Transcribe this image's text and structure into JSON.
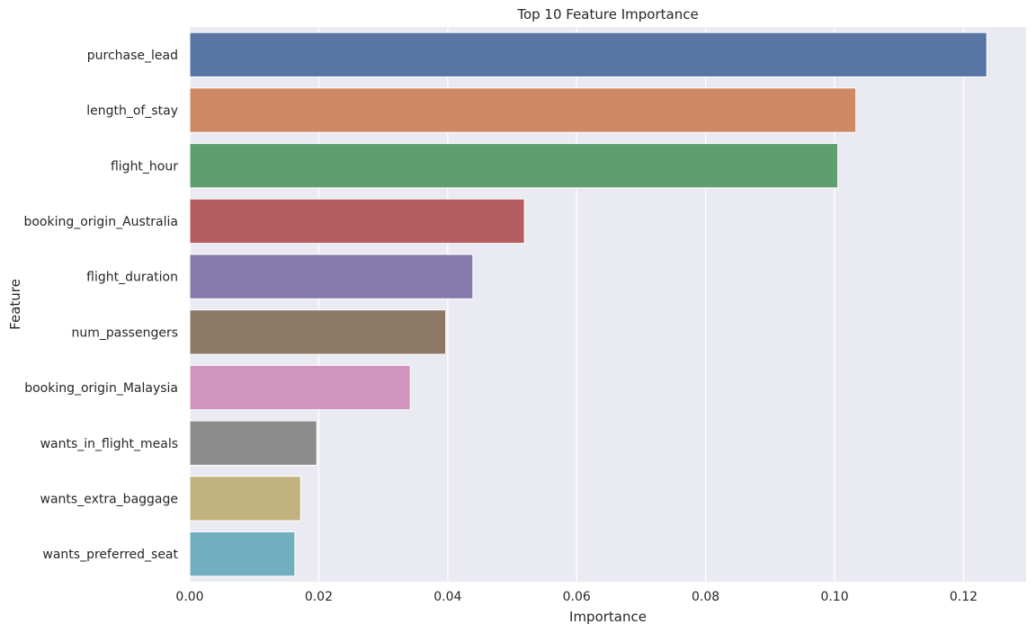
{
  "chart_data": {
    "type": "bar",
    "orientation": "horizontal",
    "title": "Top 10 Feature Importance",
    "xlabel": "Importance",
    "ylabel": "Feature",
    "xlim": [
      0,
      0.1297
    ],
    "xticks": [
      "0.00",
      "0.02",
      "0.04",
      "0.06",
      "0.08",
      "0.10",
      "0.12"
    ],
    "grid": true,
    "categories": [
      "purchase_lead",
      "length_of_stay",
      "flight_hour",
      "booking_origin_Australia",
      "flight_duration",
      "num_passengers",
      "booking_origin_Malaysia",
      "wants_in_flight_meals",
      "wants_extra_baggage",
      "wants_preferred_seat"
    ],
    "values": [
      0.1236,
      0.1033,
      0.1005,
      0.0519,
      0.0439,
      0.0397,
      0.0342,
      0.0197,
      0.0172,
      0.0163
    ],
    "colors": [
      "#5975a4",
      "#cc8963",
      "#5f9e6e",
      "#b55d60",
      "#857aab",
      "#8d7866",
      "#d095bf",
      "#8c8c8c",
      "#c1b37f",
      "#71aec0"
    ],
    "background": "#eaeaf2",
    "gridColor": "#ffffff"
  }
}
